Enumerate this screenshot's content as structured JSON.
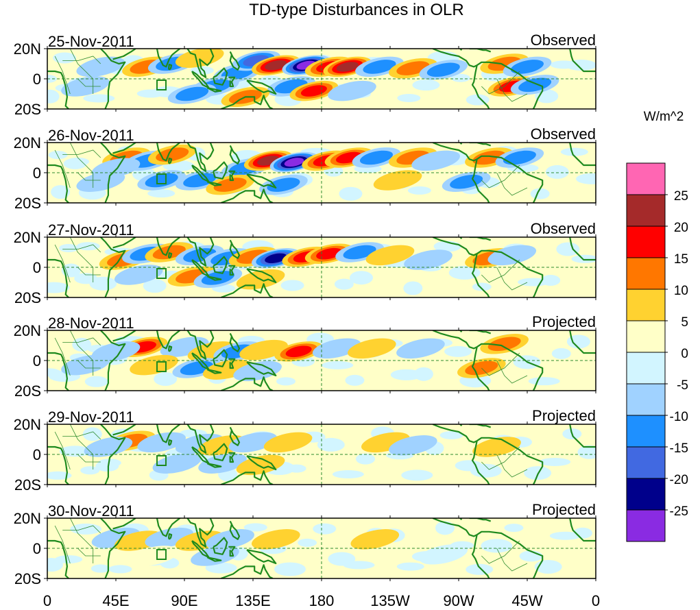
{
  "chart_data": {
    "type": "heatmap",
    "title": "TD-type Disturbances in OLR",
    "units": "W/m^2",
    "panels": [
      {
        "date": "25-Nov-2011",
        "status": "Observed"
      },
      {
        "date": "26-Nov-2011",
        "status": "Observed"
      },
      {
        "date": "27-Nov-2011",
        "status": "Observed"
      },
      {
        "date": "28-Nov-2011",
        "status": "Projected"
      },
      {
        "date": "29-Nov-2011",
        "status": "Projected"
      },
      {
        "date": "30-Nov-2011",
        "status": "Projected"
      }
    ],
    "y_ticks": [
      "20N",
      "0",
      "20S"
    ],
    "ylim": [
      -20,
      20
    ],
    "x_ticks": [
      "0",
      "45E",
      "90E",
      "135E",
      "180",
      "135W",
      "90W",
      "45W",
      "0"
    ],
    "xlim": [
      0,
      360
    ],
    "colorbar": {
      "levels": [
        "25",
        "20",
        "15",
        "10",
        "5",
        "0",
        "-5",
        "-10",
        "-15",
        "-20",
        "-25"
      ],
      "colors": [
        "#ff66b3",
        "#a52a2a",
        "#ff0000",
        "#ff7700",
        "#ffd230",
        "#ffffc8",
        "#d2f5ff",
        "#a0d2ff",
        "#1e90ff",
        "#4169e1",
        "#00008b",
        "#8a2be2"
      ]
    },
    "anomalies": [
      [
        {
          "lon": 65,
          "lat": 8,
          "v": 14
        },
        {
          "lon": 82,
          "lat": 10,
          "v": -12
        },
        {
          "lon": 100,
          "lat": 14,
          "v": 9
        },
        {
          "lon": 125,
          "lat": 4,
          "v": -12
        },
        {
          "lon": 137,
          "lat": 12,
          "v": -18
        },
        {
          "lon": 150,
          "lat": 9,
          "v": 23
        },
        {
          "lon": 170,
          "lat": 9,
          "v": -26
        },
        {
          "lon": 185,
          "lat": 8,
          "v": 18
        },
        {
          "lon": 197,
          "lat": 8,
          "v": 20
        },
        {
          "lon": 218,
          "lat": 8,
          "v": -10
        },
        {
          "lon": 240,
          "lat": 7,
          "v": 11
        },
        {
          "lon": 260,
          "lat": 6,
          "v": -10
        },
        {
          "lon": 300,
          "lat": 10,
          "v": 13
        },
        {
          "lon": 315,
          "lat": 8,
          "v": -10
        },
        {
          "lon": 305,
          "lat": -5,
          "v": 16
        },
        {
          "lon": 320,
          "lat": -4,
          "v": -11
        },
        {
          "lon": 160,
          "lat": -5,
          "v": -14
        },
        {
          "lon": 175,
          "lat": -8,
          "v": 16
        },
        {
          "lon": 110,
          "lat": -5,
          "v": -13
        },
        {
          "lon": 95,
          "lat": -10,
          "v": -10
        },
        {
          "lon": 25,
          "lat": -5,
          "v": -8
        },
        {
          "lon": 35,
          "lat": 8,
          "v": -7
        },
        {
          "lon": 200,
          "lat": -8,
          "v": -8
        },
        {
          "lon": 130,
          "lat": -12,
          "v": 12
        }
      ],
      [
        {
          "lon": 52,
          "lat": 10,
          "v": 14
        },
        {
          "lon": 66,
          "lat": 8,
          "v": -12
        },
        {
          "lon": 82,
          "lat": 12,
          "v": 12
        },
        {
          "lon": 130,
          "lat": 3,
          "v": -14
        },
        {
          "lon": 145,
          "lat": 8,
          "v": 22
        },
        {
          "lon": 162,
          "lat": 7,
          "v": -27
        },
        {
          "lon": 183,
          "lat": 8,
          "v": 18
        },
        {
          "lon": 198,
          "lat": 10,
          "v": 17
        },
        {
          "lon": 216,
          "lat": 10,
          "v": -12
        },
        {
          "lon": 240,
          "lat": 10,
          "v": 10
        },
        {
          "lon": 255,
          "lat": 8,
          "v": -8
        },
        {
          "lon": 290,
          "lat": 10,
          "v": 12
        },
        {
          "lon": 310,
          "lat": 10,
          "v": -10
        },
        {
          "lon": 75,
          "lat": -5,
          "v": -11
        },
        {
          "lon": 100,
          "lat": -5,
          "v": -13
        },
        {
          "lon": 120,
          "lat": -8,
          "v": 14
        },
        {
          "lon": 155,
          "lat": -8,
          "v": -10
        },
        {
          "lon": 275,
          "lat": -6,
          "v": -11
        },
        {
          "lon": 35,
          "lat": -6,
          "v": -8
        },
        {
          "lon": 230,
          "lat": -5,
          "v": 6
        },
        {
          "lon": 45,
          "lat": 3,
          "v": -7
        }
      ],
      [
        {
          "lon": 50,
          "lat": 5,
          "v": 12
        },
        {
          "lon": 65,
          "lat": 9,
          "v": -12
        },
        {
          "lon": 80,
          "lat": 10,
          "v": 12
        },
        {
          "lon": 100,
          "lat": 8,
          "v": -10
        },
        {
          "lon": 118,
          "lat": 6,
          "v": -13
        },
        {
          "lon": 135,
          "lat": 7,
          "v": 14
        },
        {
          "lon": 150,
          "lat": 6,
          "v": -20
        },
        {
          "lon": 170,
          "lat": 7,
          "v": 17
        },
        {
          "lon": 185,
          "lat": 9,
          "v": 17
        },
        {
          "lon": 205,
          "lat": 10,
          "v": -11
        },
        {
          "lon": 225,
          "lat": 8,
          "v": 9
        },
        {
          "lon": 250,
          "lat": 5,
          "v": -8
        },
        {
          "lon": 290,
          "lat": 6,
          "v": 10
        },
        {
          "lon": 305,
          "lat": 8,
          "v": -8
        },
        {
          "lon": 95,
          "lat": -6,
          "v": 14
        },
        {
          "lon": 112,
          "lat": -7,
          "v": -10
        },
        {
          "lon": 60,
          "lat": -5,
          "v": -7
        },
        {
          "lon": 140,
          "lat": -8,
          "v": 8
        }
      ],
      [
        {
          "lon": 63,
          "lat": 9,
          "v": 19
        },
        {
          "lon": 45,
          "lat": 6,
          "v": -7
        },
        {
          "lon": 90,
          "lat": 9,
          "v": -9
        },
        {
          "lon": 108,
          "lat": 6,
          "v": 9
        },
        {
          "lon": 125,
          "lat": 6,
          "v": -10
        },
        {
          "lon": 142,
          "lat": 7,
          "v": 8
        },
        {
          "lon": 165,
          "lat": 6,
          "v": 15
        },
        {
          "lon": 190,
          "lat": 8,
          "v": -9
        },
        {
          "lon": 213,
          "lat": 8,
          "v": 8
        },
        {
          "lon": 245,
          "lat": 8,
          "v": -7
        },
        {
          "lon": 300,
          "lat": 11,
          "v": 13
        },
        {
          "lon": 285,
          "lat": -5,
          "v": 12
        },
        {
          "lon": 98,
          "lat": -5,
          "v": -11
        },
        {
          "lon": 70,
          "lat": -3,
          "v": 8
        },
        {
          "lon": 118,
          "lat": -6,
          "v": 7
        },
        {
          "lon": 138,
          "lat": -7,
          "v": -8
        },
        {
          "lon": 25,
          "lat": -3,
          "v": -6
        }
      ],
      [
        {
          "lon": 55,
          "lat": 9,
          "v": 12
        },
        {
          "lon": 40,
          "lat": 5,
          "v": -6
        },
        {
          "lon": 75,
          "lat": 8,
          "v": -6
        },
        {
          "lon": 100,
          "lat": 7,
          "v": -8
        },
        {
          "lon": 115,
          "lat": 6,
          "v": 7
        },
        {
          "lon": 135,
          "lat": 8,
          "v": -7
        },
        {
          "lon": 158,
          "lat": 8,
          "v": 7
        },
        {
          "lon": 222,
          "lat": 8,
          "v": 9
        },
        {
          "lon": 240,
          "lat": 6,
          "v": -6
        },
        {
          "lon": 295,
          "lat": 5,
          "v": 6
        },
        {
          "lon": 115,
          "lat": -6,
          "v": -7
        },
        {
          "lon": 85,
          "lat": -6,
          "v": -5
        },
        {
          "lon": 140,
          "lat": -7,
          "v": 6
        }
      ],
      [
        {
          "lon": 45,
          "lat": 7,
          "v": -5
        },
        {
          "lon": 60,
          "lat": 5,
          "v": 6
        },
        {
          "lon": 80,
          "lat": 7,
          "v": -5
        },
        {
          "lon": 100,
          "lat": 5,
          "v": 6
        },
        {
          "lon": 120,
          "lat": 6,
          "v": -5
        },
        {
          "lon": 150,
          "lat": 6,
          "v": 5
        },
        {
          "lon": 215,
          "lat": 6,
          "v": 5
        },
        {
          "lon": 110,
          "lat": -5,
          "v": -5
        },
        {
          "lon": 70,
          "lat": -5,
          "v": 4
        },
        {
          "lon": 260,
          "lat": -4,
          "v": -4
        }
      ]
    ]
  }
}
